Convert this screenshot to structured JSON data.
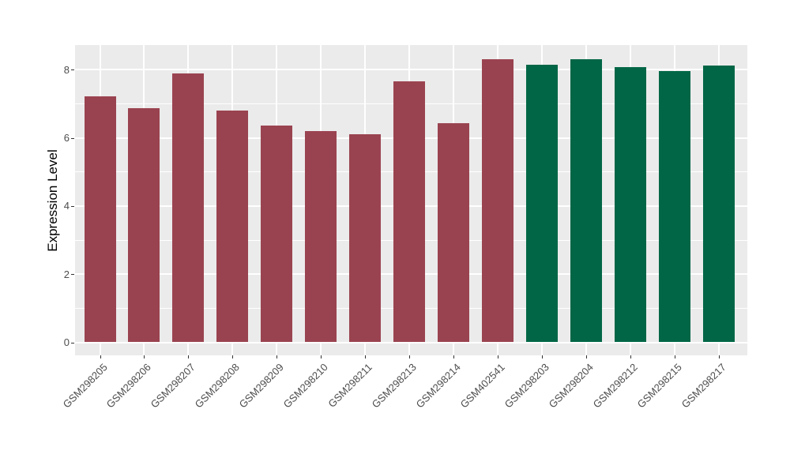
{
  "chart_data": {
    "type": "bar",
    "title": "",
    "xlabel": "",
    "ylabel": "Expression Level",
    "categories": [
      "GSM298205",
      "GSM298206",
      "GSM298207",
      "GSM298208",
      "GSM298209",
      "GSM298210",
      "GSM298211",
      "GSM298213",
      "GSM298214",
      "GSM402541",
      "GSM298203",
      "GSM298204",
      "GSM298212",
      "GSM298215",
      "GSM298217"
    ],
    "values": [
      7.22,
      6.88,
      7.89,
      6.8,
      6.37,
      6.2,
      6.11,
      7.65,
      6.44,
      8.31,
      8.15,
      8.31,
      8.08,
      7.95,
      8.12
    ],
    "bar_group_index": [
      0,
      0,
      0,
      0,
      0,
      0,
      0,
      0,
      0,
      0,
      1,
      1,
      1,
      1,
      1
    ],
    "group_colors": [
      "#9A4350",
      "#006646"
    ],
    "yticks": [
      0,
      2,
      4,
      6,
      8
    ],
    "yticks_minor": [
      1,
      3,
      5,
      7
    ],
    "ylim": [
      0,
      8.72
    ],
    "panel_background": "#EBEBEB",
    "grid_color": "#FFFFFF",
    "axis_text_color": "#4D4D4D",
    "legend": "none",
    "grid": "on"
  }
}
